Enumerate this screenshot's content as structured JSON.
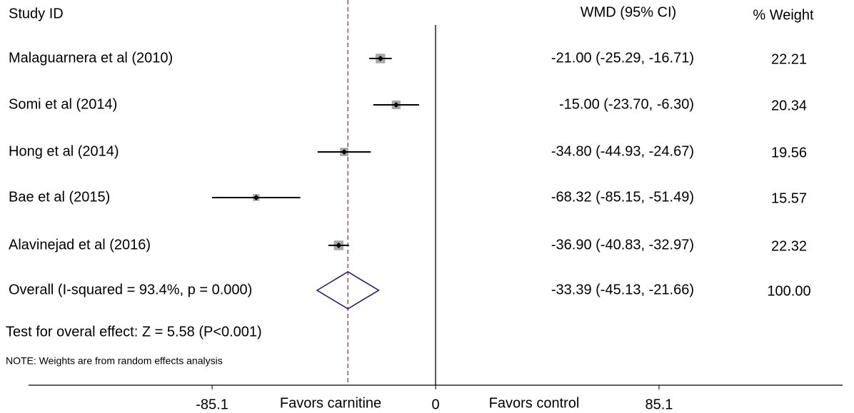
{
  "chart_data": {
    "type": "forest",
    "headers": {
      "study": "Study ID",
      "effect": "WMD (95% CI)",
      "weight": "% Weight"
    },
    "studies": [
      {
        "name": "Malaguarnera et al (2010)",
        "estimate": -21.0,
        "lower": -25.29,
        "upper": -16.71,
        "ci_label": "-21.00 (-25.29, -16.71)",
        "weight": 22.21
      },
      {
        "name": "Somi et al  (2014)",
        "estimate": -15.0,
        "lower": -23.7,
        "upper": -6.3,
        "ci_label": "-15.00 (-23.70, -6.30)",
        "weight": 20.34
      },
      {
        "name": "Hong et al  (2014)",
        "estimate": -34.8,
        "lower": -44.93,
        "upper": -24.67,
        "ci_label": "-34.80 (-44.93, -24.67)",
        "weight": 19.56
      },
      {
        "name": "Bae et al  (2015)",
        "estimate": -68.32,
        "lower": -85.15,
        "upper": -51.49,
        "ci_label": "-68.32 (-85.15, -51.49)",
        "weight": 15.57
      },
      {
        "name": "Alavinejad  et al  (2016)",
        "estimate": -36.9,
        "lower": -40.83,
        "upper": -32.97,
        "ci_label": "-36.90 (-40.83, -32.97)",
        "weight": 22.32
      }
    ],
    "overall": {
      "name": "Overall  (I-squared = 93.4%, p = 0.000)",
      "estimate": -33.39,
      "lower": -45.13,
      "upper": -21.66,
      "ci_label": "-33.39 (-45.13, -21.66)",
      "weight": 100,
      "weight_label": "100.00"
    },
    "test": "Test for overal effect: Z = 5.58 (P<0.001)",
    "note": "NOTE: Weights are from random effects analysis",
    "favors_left": "Favors carnitine",
    "favors_right": "Favors control",
    "xlim": [
      -155,
      155
    ],
    "xticks": [
      -85.1,
      0,
      85.1
    ],
    "diamond_color": "#1c1c78",
    "reference_color": "#a03040",
    "square_color": "#a8a8a8"
  }
}
